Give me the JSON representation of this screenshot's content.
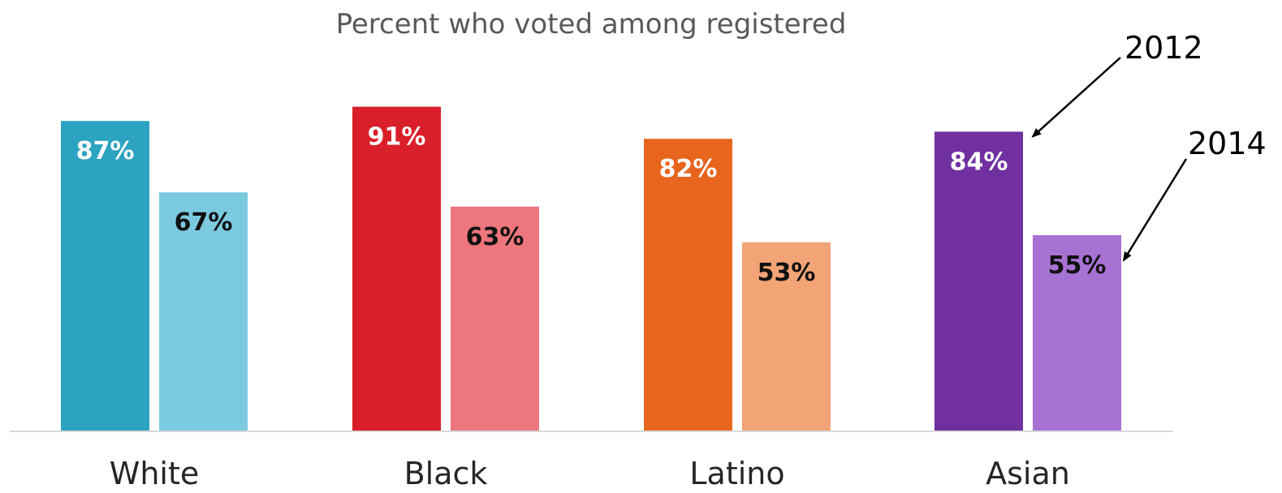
{
  "chart_data": {
    "type": "bar",
    "title": "Percent who voted among registered",
    "categories": [
      "White",
      "Black",
      "Latino",
      "Asian"
    ],
    "series": [
      {
        "name": "2012",
        "values": [
          87,
          91,
          82,
          84
        ],
        "colors": [
          "#2CA3C0",
          "#D91F2A",
          "#E8651E",
          "#7030A0"
        ],
        "label_color": "#FFFFFF"
      },
      {
        "name": "2014",
        "values": [
          67,
          63,
          53,
          55
        ],
        "colors": [
          "#7CCAE0",
          "#EE767D",
          "#F2A476",
          "#A872D5"
        ],
        "label_color": "#111111"
      }
    ],
    "value_suffix": "%",
    "ylim": [
      0,
      100
    ],
    "grid": false,
    "legend": "callout arrows on Asian bars"
  }
}
